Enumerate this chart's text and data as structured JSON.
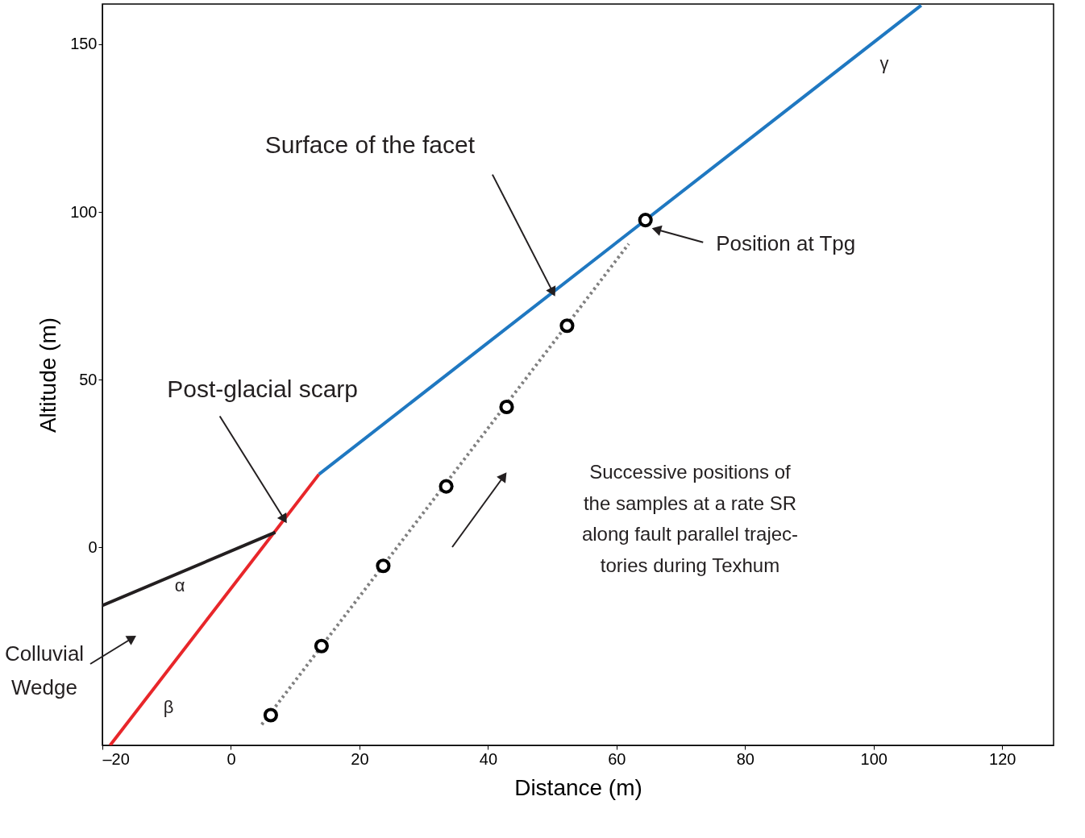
{
  "chart_data": {
    "type": "line",
    "xlabel": "Distance (m)",
    "ylabel": "Altitude (m)",
    "xlim": [
      -20,
      128
    ],
    "ylim": [
      -59,
      162
    ],
    "xticks": [
      {
        "value": -20,
        "label": "–20"
      },
      0,
      20,
      40,
      60,
      80,
      100,
      120
    ],
    "yticks": [
      0,
      50,
      100,
      150
    ],
    "grid": false,
    "series": [
      {
        "color": "#e8262a",
        "line_style": "solid",
        "marker": "none",
        "x": [
          -18.8,
          13.7
        ],
        "values": [
          -59,
          21.8
        ]
      },
      {
        "color": "#1f78c1",
        "line_style": "solid",
        "marker": "none",
        "x": [
          13.7,
          107.4
        ],
        "values": [
          21.8,
          161.6
        ]
      },
      {
        "color": "#231f20",
        "line_style": "solid",
        "marker": "none",
        "x": [
          -20,
          6.9
        ],
        "values": [
          -17.3,
          4.5
        ]
      },
      {
        "color": "#808080",
        "line_style": "dotted",
        "marker": "none",
        "x": [
          4.8,
          61.9
        ],
        "values": [
          -52.8,
          90.5
        ]
      },
      {
        "type": "scatter",
        "color": "#000000",
        "marker": "circle",
        "x": [
          6.2,
          14.1,
          23.7,
          33.5,
          42.9,
          52.3,
          64.5
        ],
        "values": [
          -50,
          -29.4,
          -5.5,
          18.2,
          41.9,
          66.1,
          97.6
        ]
      }
    ],
    "annotations": [
      {
        "text": "Surface of the facet",
        "x": 50.1,
        "y": 76.1
      },
      {
        "text": "Position at Tpg",
        "x": 66.2,
        "y": 94.8
      },
      {
        "text": "Post-glacial scarp",
        "x": 8.3,
        "y": 8.4
      },
      "Colluvial\nWedge",
      "Successive positions of\nthe samples at a rate SR\nalong fault parallel trajec-\ntories during Texhum",
      "α",
      "β",
      "γ"
    ]
  }
}
